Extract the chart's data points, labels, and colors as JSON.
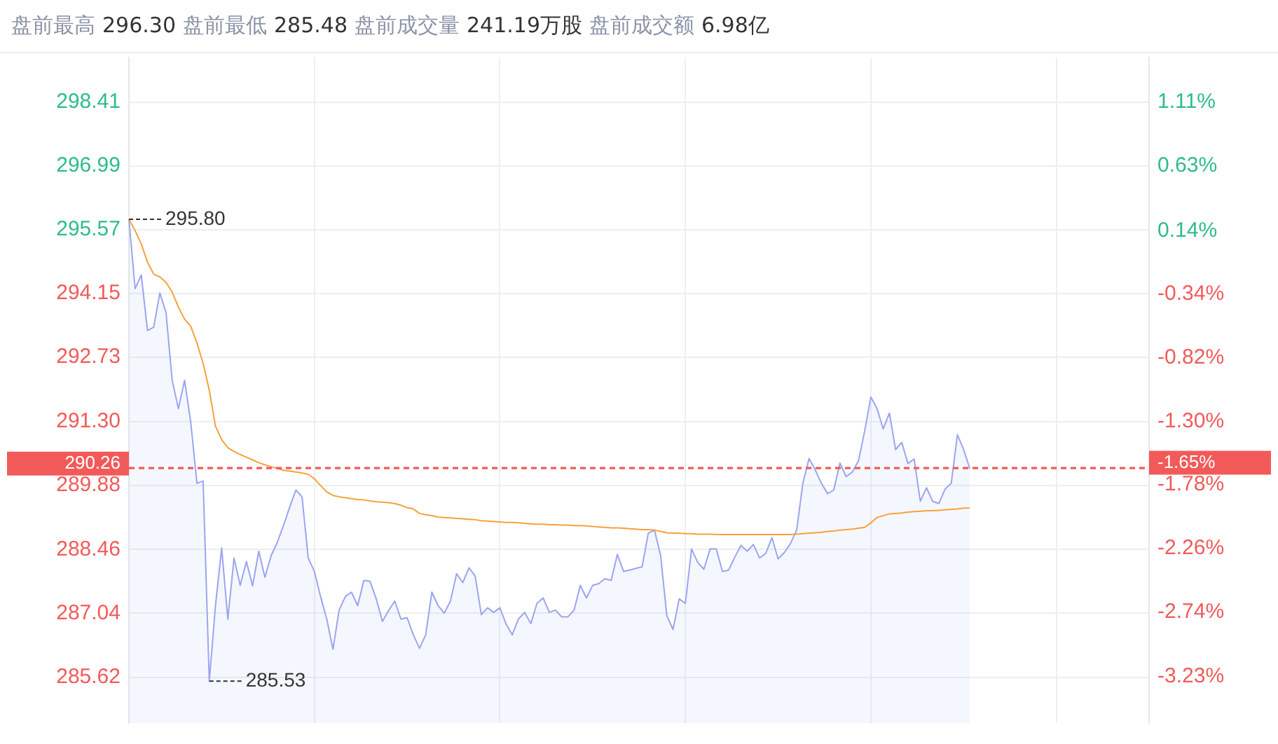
{
  "chart_data": {
    "type": "area",
    "title": "盘前最高 296.30 盘前最低 285.48 盘前成交量 241.19万股 盘前成交额 6.98亿",
    "categories": [
      null,
      null,
      null,
      null,
      null,
      null,
      null,
      null,
      null,
      null,
      null,
      null,
      null,
      null,
      null,
      null,
      null,
      null,
      null,
      null,
      null,
      null,
      null,
      null,
      null,
      null,
      null,
      null,
      null,
      null,
      null,
      null,
      null,
      null,
      null,
      null,
      null,
      null,
      null,
      null,
      null,
      null,
      null,
      null,
      null,
      null,
      null,
      null,
      null,
      null,
      null,
      null,
      null,
      null,
      null,
      null,
      null,
      null,
      null,
      null,
      null,
      null,
      null,
      null,
      null,
      null,
      null,
      null,
      null,
      null,
      null,
      null,
      null,
      null,
      null,
      null,
      null,
      null,
      null,
      null,
      null,
      null,
      null,
      null,
      null,
      null,
      null,
      null,
      null,
      null,
      null,
      null,
      null,
      null,
      null,
      null,
      null,
      null,
      null,
      null,
      null,
      null,
      null,
      null,
      null,
      null,
      null,
      null,
      null,
      null,
      null,
      null,
      null,
      null,
      null,
      null,
      null,
      null,
      null,
      null,
      null,
      null,
      null,
      null,
      null,
      null,
      null,
      null,
      null,
      null,
      null,
      null,
      null,
      null,
      null,
      null,
      null,
      null,
      null,
      null,
      null,
      null,
      null,
      null,
      null,
      null,
      null,
      null,
      null,
      null,
      null,
      null,
      null,
      null,
      null,
      null,
      null,
      null,
      null,
      null,
      null,
      null,
      null,
      null,
      null,
      null
    ],
    "ylim": [
      284.6,
      299.4
    ],
    "yticks": [
      {
        "value": 285.62,
        "label": "285.62"
      },
      {
        "value": 287.04,
        "label": "287.04"
      },
      {
        "value": 288.46,
        "label": "288.46"
      },
      {
        "value": 289.88,
        "label": "289.88"
      },
      {
        "value": 291.3,
        "label": "291.30"
      },
      {
        "value": 292.73,
        "label": "292.73"
      },
      {
        "value": 294.15,
        "label": "294.15"
      },
      {
        "value": 295.57,
        "label": "295.57"
      },
      {
        "value": 296.99,
        "label": "296.99"
      },
      {
        "value": 298.41,
        "label": "298.41"
      }
    ],
    "y2lim": [
      -3.58,
      1.45
    ],
    "y2ticks": [
      {
        "value": -3.23,
        "label": "-3.23%"
      },
      {
        "value": -2.74,
        "label": "-2.74%"
      },
      {
        "value": -2.26,
        "label": "-2.26%"
      },
      {
        "value": -1.78,
        "label": "-1.78%"
      },
      {
        "value": -1.3,
        "label": "-1.30%"
      },
      {
        "value": -0.82,
        "label": "-0.82%"
      },
      {
        "value": -0.34,
        "label": "-0.34%"
      },
      {
        "value": 0.14,
        "label": "0.14%"
      },
      {
        "value": 0.63,
        "label": "0.63%"
      },
      {
        "value": 1.11,
        "label": "1.11%"
      }
    ],
    "grid": true,
    "marker": "none",
    "series": [
      {
        "color": "#9aa5f0",
        "values": [
          295.8,
          294.26,
          294.56,
          293.33,
          293.4,
          294.16,
          293.73,
          292.22,
          291.59,
          292.22,
          291.29,
          289.93,
          289.98,
          285.53,
          287.21,
          288.49,
          286.91,
          288.27,
          287.66,
          288.19,
          287.65,
          288.42,
          287.84,
          288.32,
          288.62,
          288.99,
          289.4,
          289.78,
          289.63,
          288.27,
          287.97,
          287.41,
          286.91,
          286.24,
          287.11,
          287.41,
          287.51,
          287.21,
          287.77,
          287.75,
          287.36,
          286.86,
          287.1,
          287.31,
          286.91,
          286.94,
          286.56,
          286.26,
          286.56,
          287.51,
          287.21,
          287.04,
          287.31,
          287.92,
          287.72,
          288.05,
          287.87,
          287.01,
          287.16,
          287.06,
          287.16,
          286.8,
          286.56,
          286.91,
          287.06,
          286.81,
          287.26,
          287.38,
          287.06,
          287.11,
          286.96,
          286.96,
          287.11,
          287.66,
          287.38,
          287.66,
          287.7,
          287.81,
          287.77,
          288.35,
          287.97,
          288.0,
          288.04,
          288.07,
          288.82,
          288.89,
          288.32,
          286.99,
          286.68,
          287.36,
          287.26,
          288.47,
          288.17,
          288.02,
          288.47,
          288.47,
          287.97,
          288.0,
          288.29,
          288.55,
          288.42,
          288.57,
          288.27,
          288.37,
          288.72,
          288.25,
          288.39,
          288.59,
          288.89,
          289.93,
          290.48,
          290.23,
          289.93,
          289.7,
          289.78,
          290.38,
          290.08,
          290.18,
          290.43,
          291.09,
          291.85,
          291.59,
          291.14,
          291.49,
          290.68,
          290.84,
          290.37,
          290.47,
          289.53,
          289.83,
          289.53,
          289.48,
          289.8,
          289.93,
          291.01,
          290.68,
          290.26,
          null,
          null,
          null,
          null,
          null,
          null,
          null,
          null,
          null,
          null,
          null,
          null,
          null,
          null,
          null,
          null,
          null,
          null,
          null,
          null,
          null,
          null,
          null,
          null,
          null,
          null,
          null,
          null,
          null
        ]
      },
      {
        "type": "line",
        "color": "#f7a13b",
        "values": [
          295.8,
          295.55,
          295.25,
          294.85,
          294.58,
          294.52,
          294.4,
          294.18,
          293.85,
          293.58,
          293.42,
          293.05,
          292.6,
          292.0,
          291.2,
          290.9,
          290.72,
          290.64,
          290.57,
          290.51,
          290.45,
          290.39,
          290.34,
          290.3,
          290.26,
          290.22,
          290.2,
          290.18,
          290.16,
          290.13,
          290.03,
          289.88,
          289.74,
          289.66,
          289.63,
          289.61,
          289.59,
          289.57,
          289.56,
          289.54,
          289.52,
          289.51,
          289.5,
          289.48,
          289.44,
          289.39,
          289.36,
          289.26,
          289.23,
          289.21,
          289.18,
          289.17,
          289.16,
          289.15,
          289.14,
          289.13,
          289.12,
          289.1,
          289.09,
          289.08,
          289.07,
          289.06,
          289.06,
          289.05,
          289.04,
          289.03,
          289.02,
          289.02,
          289.01,
          289.01,
          289.0,
          289.0,
          288.99,
          288.99,
          288.98,
          288.97,
          288.96,
          288.95,
          288.94,
          288.94,
          288.93,
          288.92,
          288.91,
          288.9,
          288.9,
          288.89,
          288.86,
          288.83,
          288.82,
          288.82,
          288.81,
          288.81,
          288.8,
          288.8,
          288.8,
          288.79,
          288.79,
          288.79,
          288.79,
          288.79,
          288.79,
          288.79,
          288.79,
          288.79,
          288.79,
          288.79,
          288.79,
          288.79,
          288.8,
          288.81,
          288.82,
          288.83,
          288.84,
          288.86,
          288.87,
          288.89,
          288.9,
          288.91,
          288.93,
          288.95,
          289.05,
          289.17,
          289.21,
          289.25,
          289.26,
          289.27,
          289.29,
          289.3,
          289.31,
          289.32,
          289.32,
          289.33,
          289.34,
          289.35,
          289.36,
          289.38,
          289.38,
          null,
          null,
          null,
          null,
          null,
          null,
          null,
          null,
          null,
          null,
          null,
          null,
          null,
          null,
          null,
          null,
          null,
          null,
          null,
          null,
          null,
          null,
          null,
          null,
          null,
          null,
          null,
          null,
          null
        ]
      }
    ],
    "ref_lines": [
      {
        "axis": "y",
        "value": 290.26,
        "label": "290.26",
        "color": "#f25a5a",
        "line_style": "dashed"
      },
      {
        "axis": "y2",
        "value": -1.65,
        "label": "-1.65%",
        "color": "#f25a5a",
        "line_style": "dashed"
      }
    ],
    "annotations": [
      "295.80",
      "285.53"
    ]
  }
}
